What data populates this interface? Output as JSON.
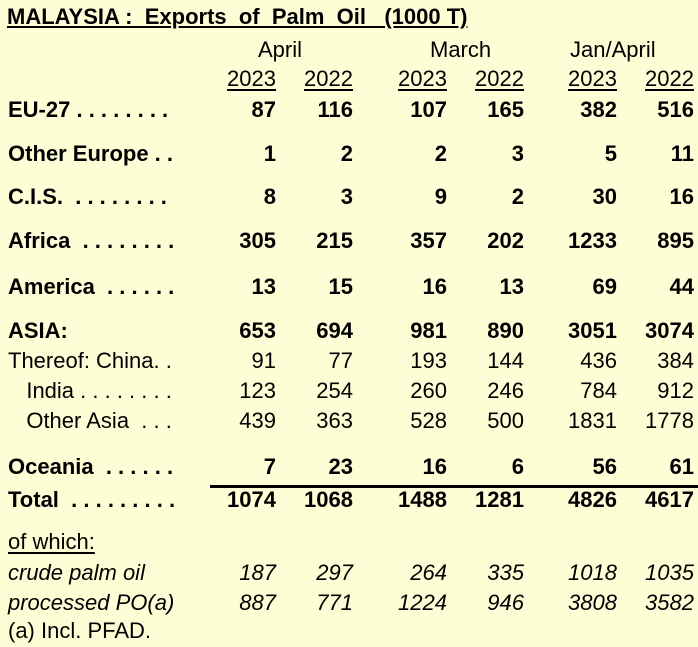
{
  "title": "MALAYSIA :  Exports  of  Palm  Oil   (1000 T)",
  "periods": [
    "April",
    "March",
    "Jan/April"
  ],
  "years": [
    "2023",
    "2022",
    "2023",
    "2022",
    "2023",
    "2022"
  ],
  "rows": [
    {
      "label": "EU-27 . . . . . . . .",
      "values": [
        "87",
        "116",
        "107",
        "165",
        "382",
        "516"
      ]
    },
    {
      "label": "Other Europe . .",
      "values": [
        "1",
        "2",
        "2",
        "3",
        "5",
        "11"
      ]
    },
    {
      "label": "C.I.S.  . . . . . . . .",
      "values": [
        "8",
        "3",
        "9",
        "2",
        "30",
        "16"
      ]
    },
    {
      "label": "Africa  . . . . . . . .",
      "values": [
        "305",
        "215",
        "357",
        "202",
        "1233",
        "895"
      ]
    },
    {
      "label": "America  . . . . . .",
      "values": [
        "13",
        "15",
        "16",
        "13",
        "69",
        "44"
      ]
    },
    {
      "label": "ASIA:",
      "values": [
        "653",
        "694",
        "981",
        "890",
        "3051",
        "3074"
      ]
    },
    {
      "label": "Thereof: China. .",
      "values": [
        "91",
        "77",
        "193",
        "144",
        "436",
        "384"
      ]
    },
    {
      "label": "   India . . . . . . . .",
      "values": [
        "123",
        "254",
        "260",
        "246",
        "784",
        "912"
      ]
    },
    {
      "label": "   Other Asia  . . .",
      "values": [
        "439",
        "363",
        "528",
        "500",
        "1831",
        "1778"
      ]
    },
    {
      "label": "Oceania  . . . . . .",
      "values": [
        "7",
        "23",
        "16",
        "6",
        "56",
        "61"
      ]
    },
    {
      "label": "Total  . . . . . . . . .",
      "values": [
        "1074",
        "1068",
        "1488",
        "1281",
        "4826",
        "4617"
      ]
    }
  ],
  "of_which_label": "of which:",
  "sub_rows": [
    {
      "label": "crude palm oil",
      "values": [
        "187",
        "297",
        "264",
        "335",
        "1018",
        "1035"
      ]
    },
    {
      "label": "processed PO(a)",
      "values": [
        "887",
        "771",
        "1224",
        "946",
        "3808",
        "3582"
      ]
    }
  ],
  "footnote": "(a) Incl. PFAD."
}
